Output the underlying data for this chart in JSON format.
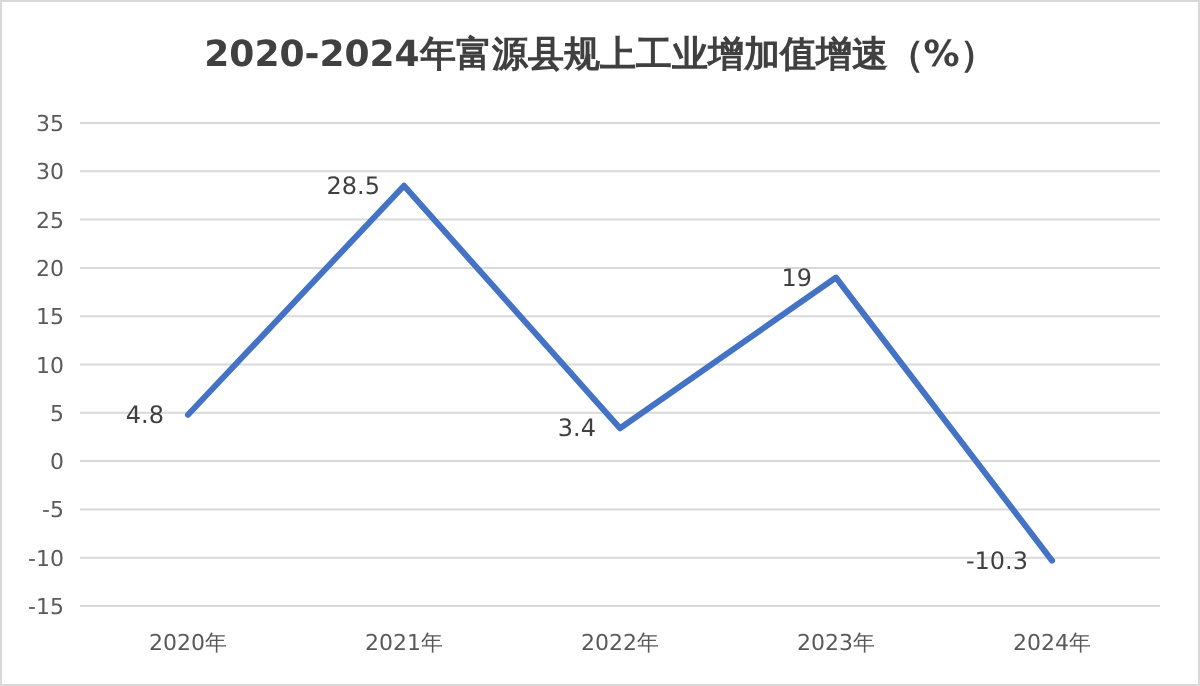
{
  "chart_data": {
    "type": "line",
    "title": "2020-2024年富源县规上工业增加值增速（%）",
    "categories": [
      "2020年",
      "2021年",
      "2022年",
      "2023年",
      "2024年"
    ],
    "values": [
      4.8,
      28.5,
      3.4,
      19,
      -10.3
    ],
    "color": "#4472c4",
    "ylim": [
      -15,
      35
    ],
    "yticks": [
      -15,
      -10,
      -5,
      0,
      5,
      10,
      15,
      20,
      25,
      30,
      35
    ],
    "grid": "y",
    "data_labels": true,
    "marker": "none",
    "line_style": "solid",
    "legend": false
  }
}
